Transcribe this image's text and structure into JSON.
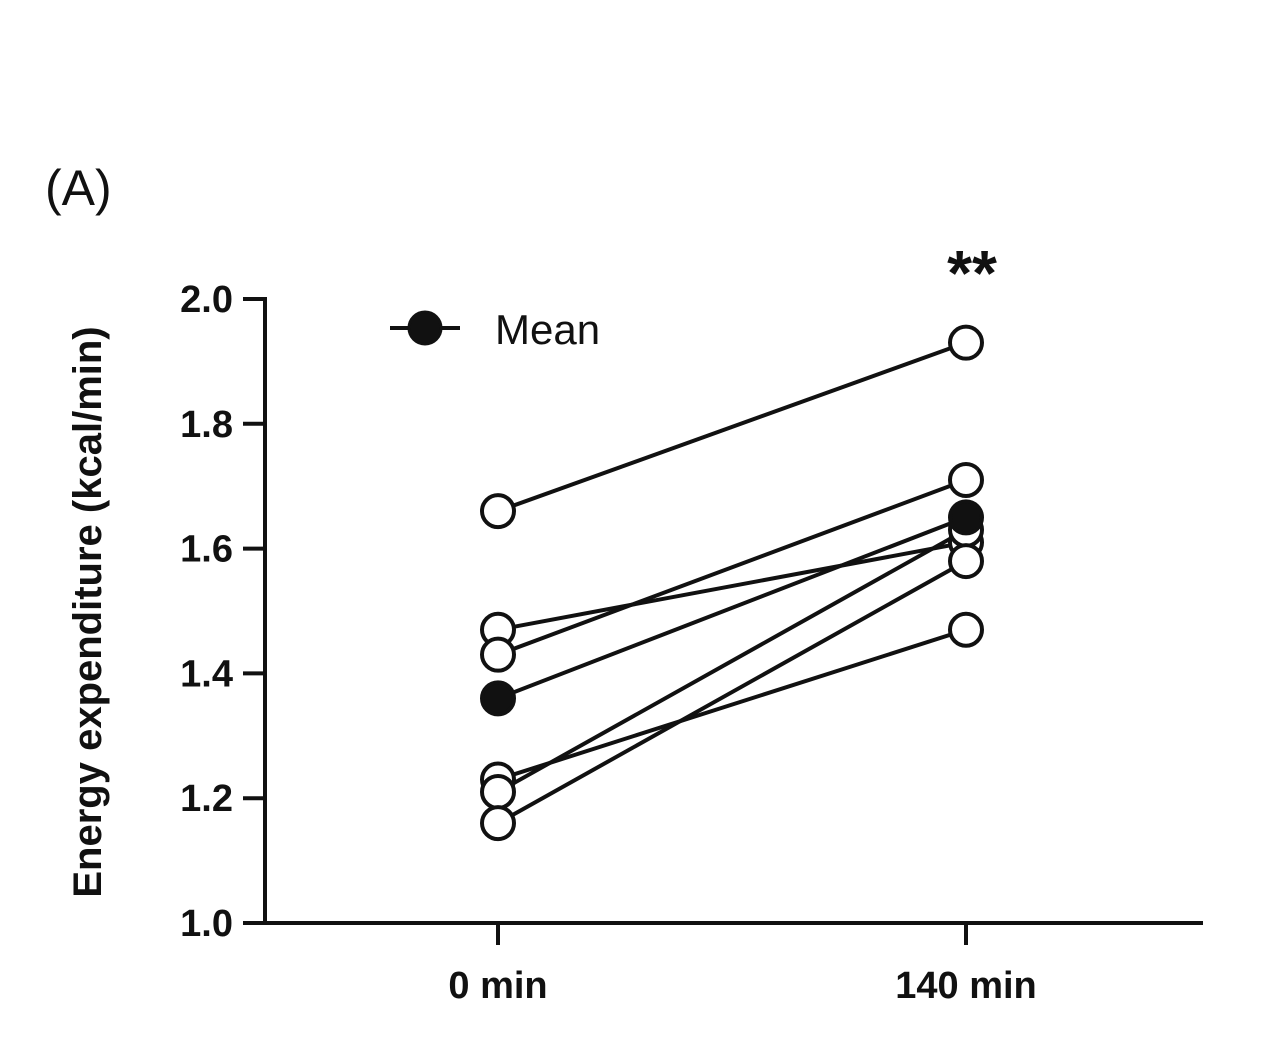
{
  "panel_label": "(A)",
  "chart_data": {
    "type": "line",
    "title": "",
    "ylabel": "Energy expenditure  (kcal/min)",
    "xlabel": "",
    "categories": [
      "0 min",
      "140 min"
    ],
    "ylim": [
      1.0,
      2.0
    ],
    "yticks": [
      "1.0",
      "1.2",
      "1.4",
      "1.6",
      "1.8",
      "2.0"
    ],
    "grid": false,
    "legend": {
      "label": "Mean",
      "placement": "top-left"
    },
    "significance": {
      "category": "140 min",
      "label": "**"
    },
    "subjects": [
      {
        "values": [
          1.66,
          1.93
        ]
      },
      {
        "values": [
          1.47,
          1.61
        ]
      },
      {
        "values": [
          1.43,
          1.71
        ]
      },
      {
        "values": [
          1.23,
          1.47
        ]
      },
      {
        "values": [
          1.21,
          1.63
        ]
      },
      {
        "values": [
          1.16,
          1.58
        ]
      }
    ],
    "mean": {
      "values": [
        1.36,
        1.65
      ]
    },
    "colors": {
      "line": "#111111",
      "open_marker_fill": "#ffffff",
      "mean_marker_fill": "#111111"
    }
  }
}
